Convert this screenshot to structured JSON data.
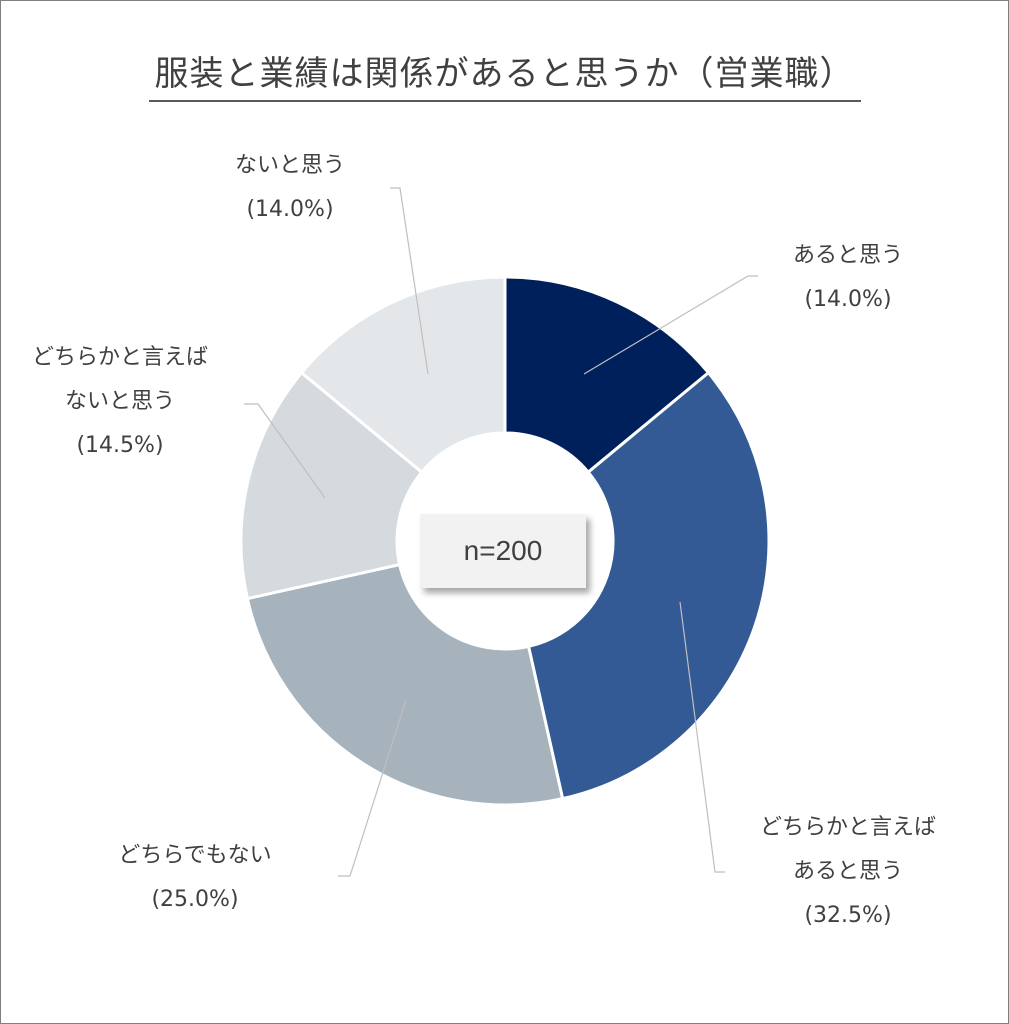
{
  "chart_data": {
    "type": "pie",
    "title": "服装と業績は関係があると思うか（営業職）",
    "center_label": "n=200",
    "slices": [
      {
        "label_lines": [
          "あると思う"
        ],
        "pct_label": "(14.0%)",
        "value": 14.0,
        "color": "#00205b"
      },
      {
        "label_lines": [
          "どちらかと言えば",
          "あると思う"
        ],
        "pct_label": "(32.5%)",
        "value": 32.5,
        "color": "#335a94"
      },
      {
        "label_lines": [
          "どちらでもない"
        ],
        "pct_label": "(25.0%)",
        "value": 25.0,
        "color": "#a6b2bc"
      },
      {
        "label_lines": [
          "どちらかと言えば",
          "ないと思う"
        ],
        "pct_label": "(14.5%)",
        "value": 14.5,
        "color": "#d5dadf"
      },
      {
        "label_lines": [
          "ないと思う"
        ],
        "pct_label": "(14.0%)",
        "value": 14.0,
        "color": "#e4e7ea"
      }
    ]
  }
}
